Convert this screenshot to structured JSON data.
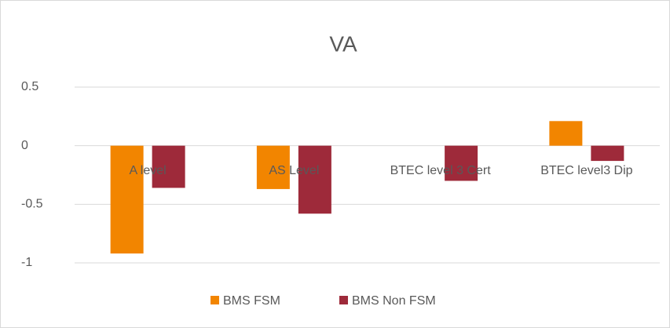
{
  "chart_data": {
    "type": "bar",
    "title": "VA",
    "categories": [
      "A level",
      "AS Level",
      "BTEC level 3 Cert",
      "BTEC level3 Dip"
    ],
    "series": [
      {
        "name": "BMS FSM",
        "color": "#f28500",
        "values": [
          -0.92,
          -0.37,
          null,
          0.21
        ]
      },
      {
        "name": "BMS Non FSM",
        "color": "#9e2a3a",
        "values": [
          -0.36,
          -0.58,
          -0.3,
          -0.13
        ]
      }
    ],
    "ylim": [
      -1,
      0.5
    ],
    "yticks": [
      -1,
      -0.5,
      0,
      0.5
    ],
    "grid": true,
    "legend": "bottom"
  }
}
